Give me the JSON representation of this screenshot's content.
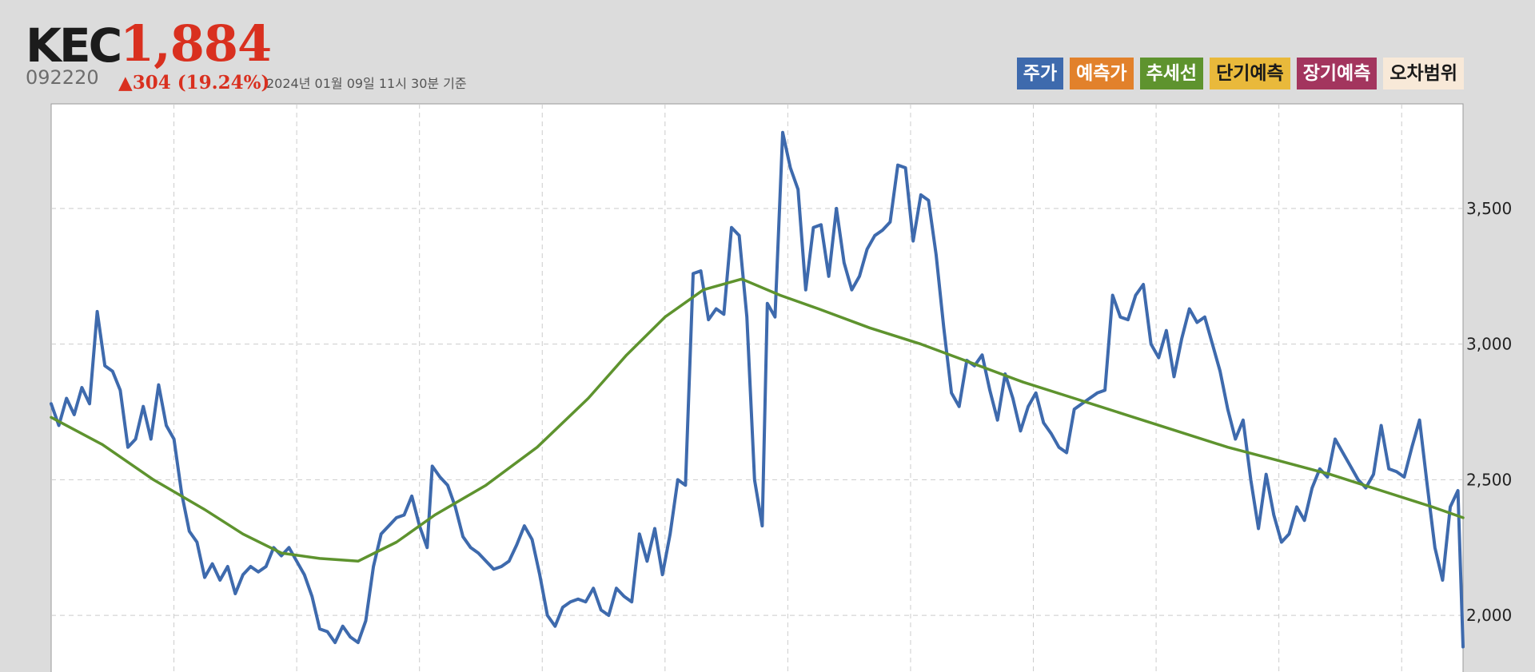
{
  "header": {
    "company": "KEC",
    "price": "1,884",
    "code": "092220",
    "change": "▲304 (19.24%)",
    "asof": "2024년 01월 09일 11시 30분 기준"
  },
  "legend": [
    {
      "label": "주가",
      "color": "#3e6aad",
      "text_color": "#ffffff"
    },
    {
      "label": "예측가",
      "color": "#e2812b",
      "text_color": "#ffffff"
    },
    {
      "label": "추세선",
      "color": "#5e932e",
      "text_color": "#ffffff"
    },
    {
      "label": "단기예측",
      "color": "#e9b93b",
      "text_color": "#1a1a1a"
    },
    {
      "label": "장기예측",
      "color": "#a3355e",
      "text_color": "#ffffff"
    },
    {
      "label": "오차범위",
      "color": "#f8e9d8",
      "text_color": "#1a1a1a"
    }
  ],
  "chart_data": {
    "type": "line",
    "xlabel": "",
    "ylabel": "",
    "ylim": [
      1650,
      3800
    ],
    "yticks": [
      {
        "value": 2000,
        "label": "2,000"
      },
      {
        "value": 2500,
        "label": "2,500"
      },
      {
        "value": 3000,
        "label": "3,000"
      },
      {
        "value": 3500,
        "label": "3,500"
      }
    ],
    "xlim": [
      0,
      552
    ],
    "x_gridlines": 11,
    "grid": true,
    "legend_position": "top-right",
    "series": [
      {
        "name": "주가",
        "color": "#3e6aad",
        "points": [
          [
            0,
            2780
          ],
          [
            3,
            2700
          ],
          [
            6,
            2800
          ],
          [
            9,
            2740
          ],
          [
            12,
            2840
          ],
          [
            15,
            2780
          ],
          [
            18,
            3120
          ],
          [
            21,
            2920
          ],
          [
            24,
            2900
          ],
          [
            27,
            2830
          ],
          [
            30,
            2620
          ],
          [
            33,
            2650
          ],
          [
            36,
            2770
          ],
          [
            39,
            2650
          ],
          [
            42,
            2850
          ],
          [
            45,
            2700
          ],
          [
            48,
            2650
          ],
          [
            51,
            2450
          ],
          [
            54,
            2310
          ],
          [
            57,
            2270
          ],
          [
            60,
            2140
          ],
          [
            63,
            2190
          ],
          [
            66,
            2130
          ],
          [
            69,
            2180
          ],
          [
            72,
            2080
          ],
          [
            75,
            2150
          ],
          [
            78,
            2180
          ],
          [
            81,
            2160
          ],
          [
            84,
            2180
          ],
          [
            87,
            2250
          ],
          [
            90,
            2220
          ],
          [
            93,
            2250
          ],
          [
            96,
            2200
          ],
          [
            99,
            2150
          ],
          [
            102,
            2070
          ],
          [
            105,
            1950
          ],
          [
            108,
            1940
          ],
          [
            111,
            1900
          ],
          [
            114,
            1960
          ],
          [
            117,
            1920
          ],
          [
            120,
            1900
          ],
          [
            123,
            1980
          ],
          [
            126,
            2180
          ],
          [
            129,
            2300
          ],
          [
            132,
            2330
          ],
          [
            135,
            2360
          ],
          [
            138,
            2370
          ],
          [
            141,
            2440
          ],
          [
            144,
            2330
          ],
          [
            147,
            2250
          ],
          [
            149,
            2550
          ],
          [
            152,
            2510
          ],
          [
            155,
            2480
          ],
          [
            158,
            2400
          ],
          [
            161,
            2290
          ],
          [
            164,
            2250
          ],
          [
            167,
            2230
          ],
          [
            170,
            2200
          ],
          [
            173,
            2170
          ],
          [
            176,
            2180
          ],
          [
            179,
            2200
          ],
          [
            182,
            2260
          ],
          [
            185,
            2330
          ],
          [
            188,
            2280
          ],
          [
            191,
            2150
          ],
          [
            194,
            2000
          ],
          [
            197,
            1960
          ],
          [
            200,
            2030
          ],
          [
            203,
            2050
          ],
          [
            206,
            2060
          ],
          [
            209,
            2050
          ],
          [
            212,
            2100
          ],
          [
            215,
            2020
          ],
          [
            218,
            2000
          ],
          [
            221,
            2100
          ],
          [
            224,
            2070
          ],
          [
            227,
            2050
          ],
          [
            230,
            2300
          ],
          [
            233,
            2200
          ],
          [
            236,
            2320
          ],
          [
            239,
            2150
          ],
          [
            242,
            2300
          ],
          [
            245,
            2500
          ],
          [
            248,
            2480
          ],
          [
            251,
            3260
          ],
          [
            254,
            3270
          ],
          [
            257,
            3090
          ],
          [
            260,
            3130
          ],
          [
            263,
            3110
          ],
          [
            266,
            3430
          ],
          [
            269,
            3400
          ],
          [
            272,
            3100
          ],
          [
            275,
            2500
          ],
          [
            278,
            2330
          ],
          [
            280,
            3150
          ],
          [
            283,
            3100
          ],
          [
            286,
            3780
          ],
          [
            289,
            3650
          ],
          [
            292,
            3570
          ],
          [
            295,
            3200
          ],
          [
            298,
            3430
          ],
          [
            301,
            3440
          ],
          [
            304,
            3250
          ],
          [
            307,
            3500
          ],
          [
            310,
            3300
          ],
          [
            313,
            3200
          ],
          [
            316,
            3250
          ],
          [
            319,
            3350
          ],
          [
            322,
            3400
          ],
          [
            325,
            3420
          ],
          [
            328,
            3450
          ],
          [
            331,
            3660
          ],
          [
            334,
            3650
          ],
          [
            337,
            3380
          ],
          [
            340,
            3550
          ],
          [
            343,
            3530
          ],
          [
            346,
            3330
          ],
          [
            349,
            3060
          ],
          [
            352,
            2820
          ],
          [
            355,
            2770
          ],
          [
            358,
            2940
          ],
          [
            361,
            2920
          ],
          [
            364,
            2960
          ],
          [
            367,
            2830
          ],
          [
            370,
            2720
          ],
          [
            373,
            2890
          ],
          [
            376,
            2800
          ],
          [
            379,
            2680
          ],
          [
            382,
            2770
          ],
          [
            385,
            2820
          ],
          [
            388,
            2710
          ],
          [
            391,
            2670
          ],
          [
            394,
            2620
          ],
          [
            397,
            2600
          ],
          [
            400,
            2760
          ],
          [
            403,
            2780
          ],
          [
            406,
            2800
          ],
          [
            409,
            2820
          ],
          [
            412,
            2830
          ],
          [
            415,
            3180
          ],
          [
            418,
            3100
          ],
          [
            421,
            3090
          ],
          [
            424,
            3180
          ],
          [
            427,
            3220
          ],
          [
            430,
            3000
          ],
          [
            433,
            2950
          ],
          [
            436,
            3050
          ],
          [
            439,
            2880
          ],
          [
            442,
            3020
          ],
          [
            445,
            3130
          ],
          [
            448,
            3080
          ],
          [
            451,
            3100
          ],
          [
            454,
            3000
          ],
          [
            457,
            2900
          ],
          [
            460,
            2760
          ],
          [
            463,
            2650
          ],
          [
            466,
            2720
          ],
          [
            469,
            2500
          ],
          [
            472,
            2320
          ],
          [
            475,
            2520
          ],
          [
            478,
            2370
          ],
          [
            481,
            2270
          ],
          [
            484,
            2300
          ],
          [
            487,
            2400
          ],
          [
            490,
            2350
          ],
          [
            493,
            2470
          ],
          [
            496,
            2540
          ],
          [
            499,
            2510
          ],
          [
            502,
            2650
          ],
          [
            505,
            2600
          ],
          [
            508,
            2550
          ],
          [
            511,
            2500
          ],
          [
            514,
            2470
          ],
          [
            517,
            2520
          ],
          [
            520,
            2700
          ],
          [
            523,
            2540
          ],
          [
            526,
            2530
          ],
          [
            529,
            2510
          ],
          [
            532,
            2620
          ],
          [
            535,
            2720
          ],
          [
            538,
            2480
          ],
          [
            541,
            2250
          ],
          [
            544,
            2130
          ],
          [
            547,
            2400
          ],
          [
            550,
            2460
          ],
          [
            552,
            1884
          ]
        ]
      },
      {
        "name": "추세선",
        "color": "#5e932e",
        "points": [
          [
            0,
            2730
          ],
          [
            20,
            2630
          ],
          [
            40,
            2500
          ],
          [
            60,
            2390
          ],
          [
            75,
            2300
          ],
          [
            90,
            2230
          ],
          [
            105,
            2210
          ],
          [
            120,
            2200
          ],
          [
            135,
            2270
          ],
          [
            150,
            2370
          ],
          [
            170,
            2480
          ],
          [
            190,
            2620
          ],
          [
            210,
            2800
          ],
          [
            225,
            2960
          ],
          [
            240,
            3100
          ],
          [
            255,
            3200
          ],
          [
            270,
            3240
          ],
          [
            285,
            3180
          ],
          [
            300,
            3130
          ],
          [
            320,
            3060
          ],
          [
            340,
            3000
          ],
          [
            360,
            2930
          ],
          [
            380,
            2860
          ],
          [
            400,
            2800
          ],
          [
            420,
            2740
          ],
          [
            440,
            2680
          ],
          [
            460,
            2620
          ],
          [
            480,
            2570
          ],
          [
            500,
            2520
          ],
          [
            520,
            2460
          ],
          [
            540,
            2400
          ],
          [
            552,
            2360
          ]
        ]
      }
    ]
  }
}
